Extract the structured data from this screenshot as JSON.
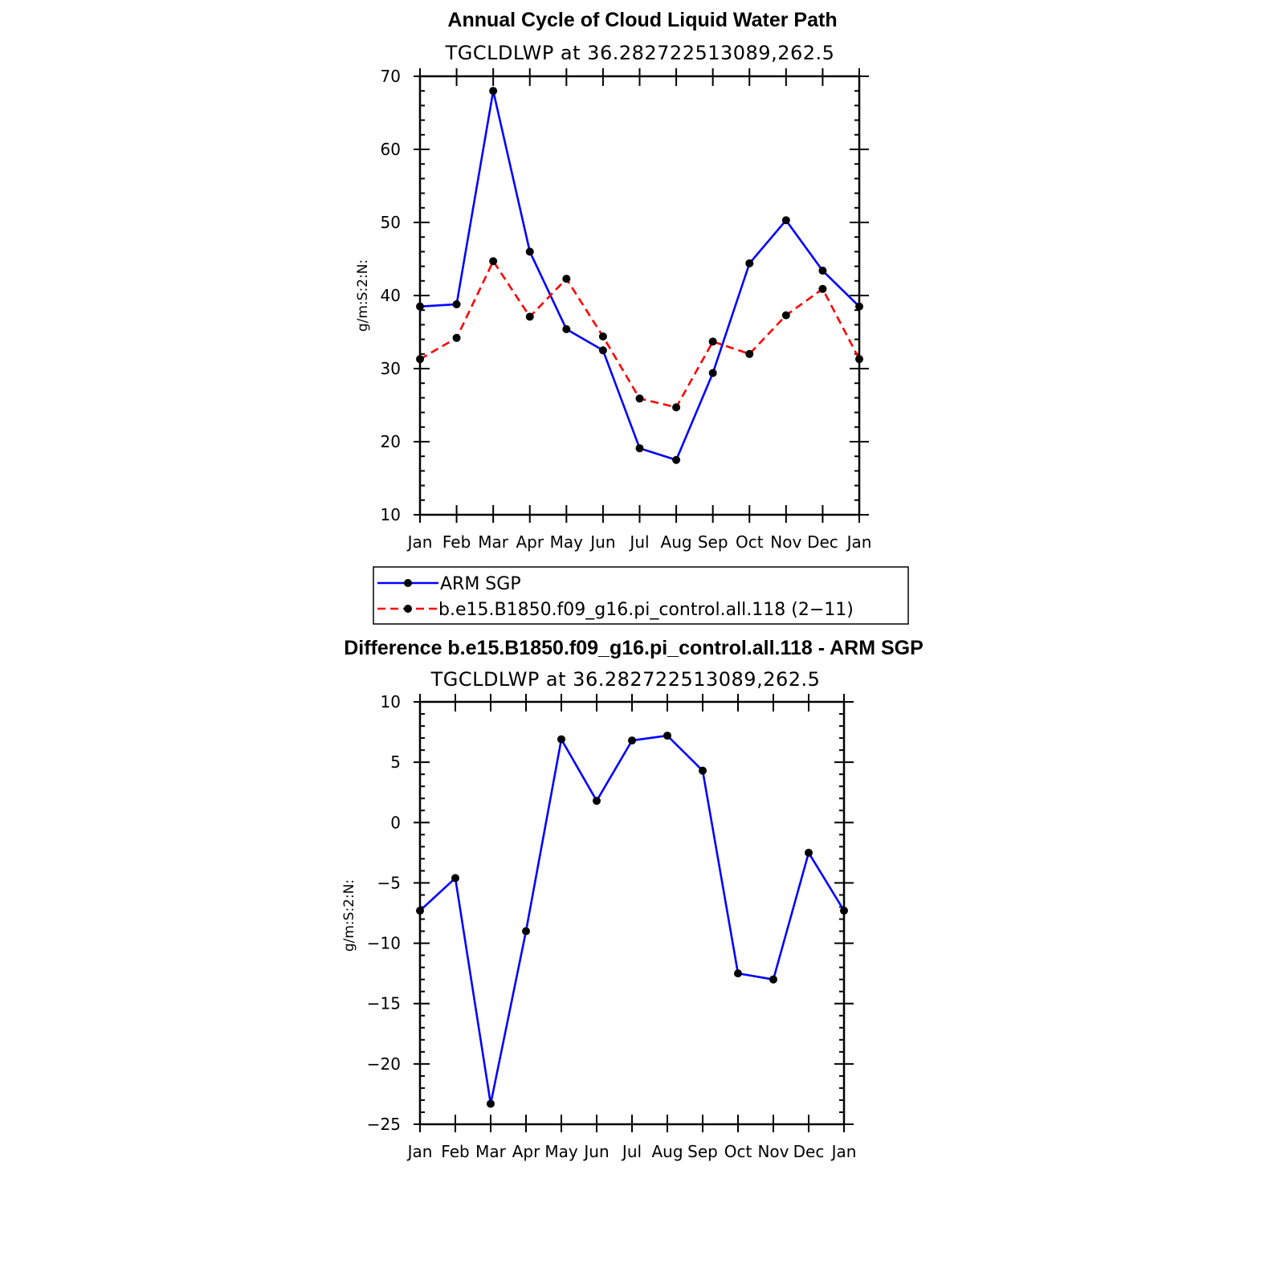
{
  "chart_data": [
    {
      "type": "line",
      "title": "Annual Cycle of Cloud Liquid Water Path",
      "subtitle": "TGCLDLWP  at  36.282722513089,262.5",
      "xlabel": "",
      "ylabel": "g/m:S:2:N:",
      "categories": [
        "Jan",
        "Feb",
        "Mar",
        "Apr",
        "May",
        "Jun",
        "Jul",
        "Aug",
        "Sep",
        "Oct",
        "Nov",
        "Dec",
        "Jan"
      ],
      "ylim": [
        10,
        70
      ],
      "yticks": [
        10,
        20,
        30,
        40,
        50,
        60,
        70
      ],
      "series": [
        {
          "name": "ARM  SGP",
          "color": "#0000ff",
          "dash": "solid",
          "values": [
            38.5,
            38.8,
            68.0,
            46.0,
            35.4,
            32.5,
            19.1,
            17.5,
            29.4,
            44.4,
            50.3,
            43.4,
            38.5
          ]
        },
        {
          "name": "b.e15.B1850.f09_g16.pi_control.all.118  (2−11)",
          "color": "#ff0000",
          "dash": "dashed",
          "values": [
            31.3,
            34.2,
            44.7,
            37.1,
            42.3,
            34.4,
            25.9,
            24.7,
            33.7,
            32.0,
            37.3,
            40.9,
            31.3
          ]
        }
      ],
      "legend": "below"
    },
    {
      "type": "line",
      "title": "Difference b.e15.B1850.f09_g16.pi_control.all.118 - ARM SGP",
      "subtitle": "TGCLDLWP  at  36.282722513089,262.5",
      "xlabel": "",
      "ylabel": "g/m:S:2:N:",
      "categories": [
        "Jan",
        "Feb",
        "Mar",
        "Apr",
        "May",
        "Jun",
        "Jul",
        "Aug",
        "Sep",
        "Oct",
        "Nov",
        "Dec",
        "Jan"
      ],
      "ylim": [
        -25,
        10
      ],
      "yticks": [
        -25,
        -20,
        -15,
        -10,
        -5,
        0,
        5,
        10
      ],
      "ytick_labels": [
        "−25",
        "−20",
        "−15",
        "−10",
        "−5",
        "0",
        "5",
        "10"
      ],
      "series": [
        {
          "name": "Difference",
          "color": "#0000ff",
          "dash": "solid",
          "values": [
            -7.3,
            -4.6,
            -23.3,
            -9.0,
            6.9,
            1.8,
            6.8,
            7.2,
            4.3,
            -12.5,
            -13.0,
            -2.5,
            -7.3
          ]
        }
      ]
    }
  ]
}
